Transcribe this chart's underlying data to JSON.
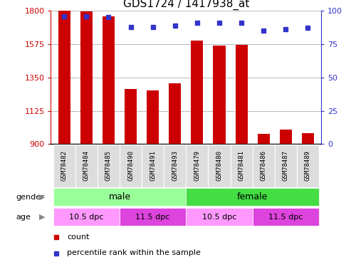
{
  "title": "GDS1724 / 1417938_at",
  "samples": [
    "GSM78482",
    "GSM78484",
    "GSM78485",
    "GSM78490",
    "GSM78491",
    "GSM78493",
    "GSM78479",
    "GSM78480",
    "GSM78481",
    "GSM78486",
    "GSM78487",
    "GSM78489"
  ],
  "counts": [
    1800,
    1795,
    1760,
    1270,
    1260,
    1310,
    1600,
    1565,
    1570,
    970,
    1000,
    975
  ],
  "percentile": [
    96,
    96,
    95,
    88,
    88,
    89,
    91,
    91,
    91,
    85,
    86,
    87
  ],
  "ylim_left": [
    900,
    1800
  ],
  "ylim_right": [
    0,
    100
  ],
  "yticks_left": [
    900,
    1125,
    1350,
    1575,
    1800
  ],
  "yticks_right": [
    0,
    25,
    50,
    75,
    100
  ],
  "bar_color": "#cc0000",
  "dot_color": "#3333cc",
  "plot_bg_color": "#ffffff",
  "title_fontsize": 11,
  "tick_fontsize": 8,
  "sample_fontsize": 6.5,
  "gender_male_color": "#99ff99",
  "gender_female_color": "#44dd44",
  "age_light_color": "#ff99ff",
  "age_dark_color": "#dd44dd",
  "age_splits": [
    3,
    6,
    9
  ],
  "male_count": 6,
  "female_count": 6,
  "age_10_5_male_count": 3,
  "age_11_5_male_count": 3,
  "age_10_5_female_count": 3,
  "age_11_5_female_count": 3
}
